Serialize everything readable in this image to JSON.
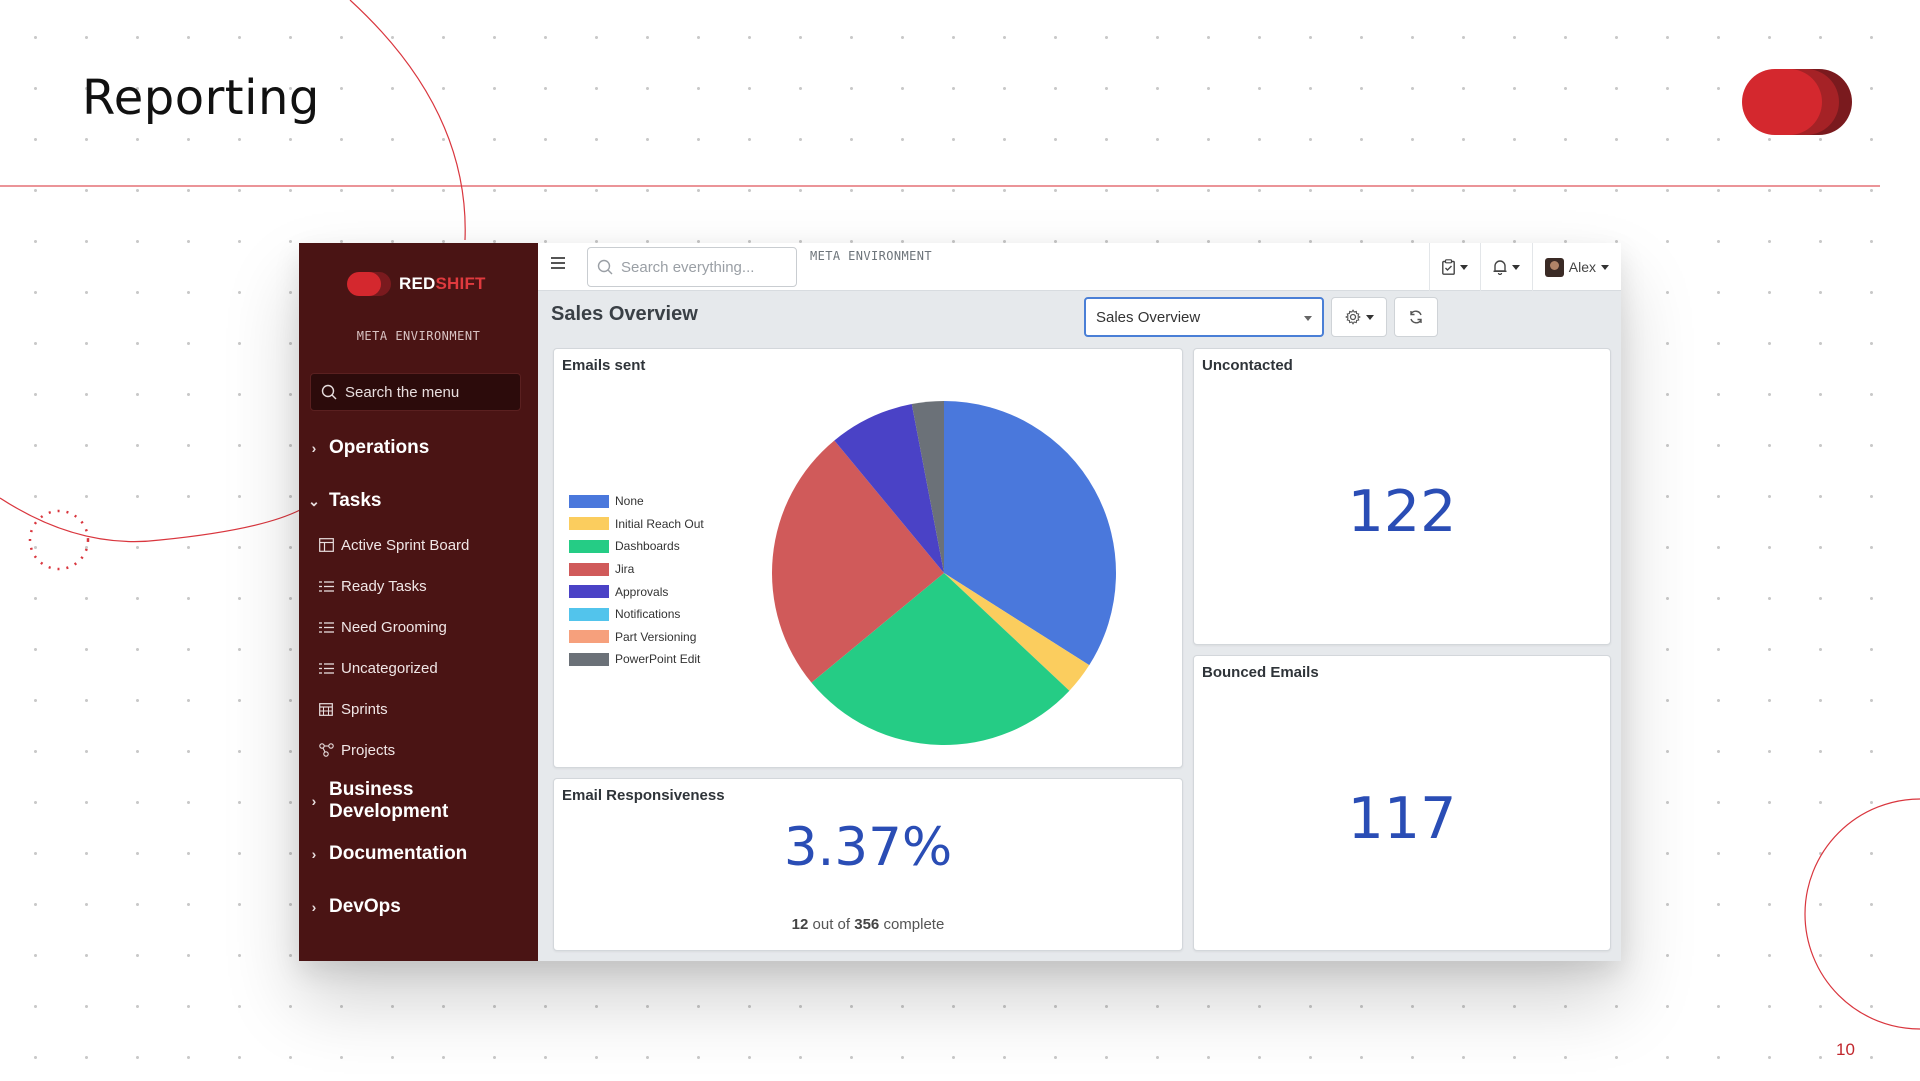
{
  "slide": {
    "title": "Reporting",
    "page_number": "10",
    "accent_color": "#c1272d"
  },
  "sidebar": {
    "logo_red": "RED",
    "logo_shift": "SHIFT",
    "environment": "META ENVIRONMENT",
    "search_placeholder": "Search the menu",
    "groups": [
      {
        "label": "Operations",
        "expanded": false
      },
      {
        "label": "Tasks",
        "expanded": true
      },
      {
        "label": "Business Development",
        "expanded": false
      },
      {
        "label": "Documentation",
        "expanded": false
      },
      {
        "label": "DevOps",
        "expanded": false
      }
    ],
    "task_items": [
      {
        "label": "Active Sprint Board",
        "icon": "board-icon"
      },
      {
        "label": "Ready Tasks",
        "icon": "list-icon"
      },
      {
        "label": "Need Grooming",
        "icon": "list-icon"
      },
      {
        "label": "Uncategorized",
        "icon": "list-icon"
      },
      {
        "label": "Sprints",
        "icon": "calendar-icon"
      },
      {
        "label": "Projects",
        "icon": "project-icon"
      }
    ]
  },
  "topbar": {
    "search_placeholder": "Search everything...",
    "environment": "META ENVIRONMENT",
    "user_name": "Alex"
  },
  "dashboard": {
    "title": "Sales Overview",
    "selected_dashboard": "Sales Overview",
    "cards": {
      "emails_sent": {
        "title": "Emails sent"
      },
      "uncontacted": {
        "title": "Uncontacted",
        "value": "122"
      },
      "bounced": {
        "title": "Bounced Emails",
        "value": "117"
      },
      "responsiveness": {
        "title": "Email Responsiveness",
        "value": "3.37%",
        "done": "12",
        "out_of_text": "out of",
        "total": "356",
        "complete_text": "complete"
      }
    }
  },
  "chart_data": {
    "type": "pie",
    "title": "Emails sent",
    "legend_position": "left",
    "slices": [
      {
        "label": "None",
        "value": 34,
        "color": "#4a78dc"
      },
      {
        "label": "Initial Reach Out",
        "value": 3,
        "color": "#fbcd5e"
      },
      {
        "label": "Dashboards",
        "value": 27,
        "color": "#25cc85"
      },
      {
        "label": "Jira",
        "value": 25,
        "color": "#d05a5a"
      },
      {
        "label": "Approvals",
        "value": 8,
        "color": "#4a42c6"
      },
      {
        "label": "Notifications",
        "value": 0,
        "color": "#52c4ec"
      },
      {
        "label": "Part Versioning",
        "value": 0,
        "color": "#f6a07c"
      },
      {
        "label": "PowerPoint Edit",
        "value": 3,
        "color": "#6b7178"
      }
    ]
  }
}
